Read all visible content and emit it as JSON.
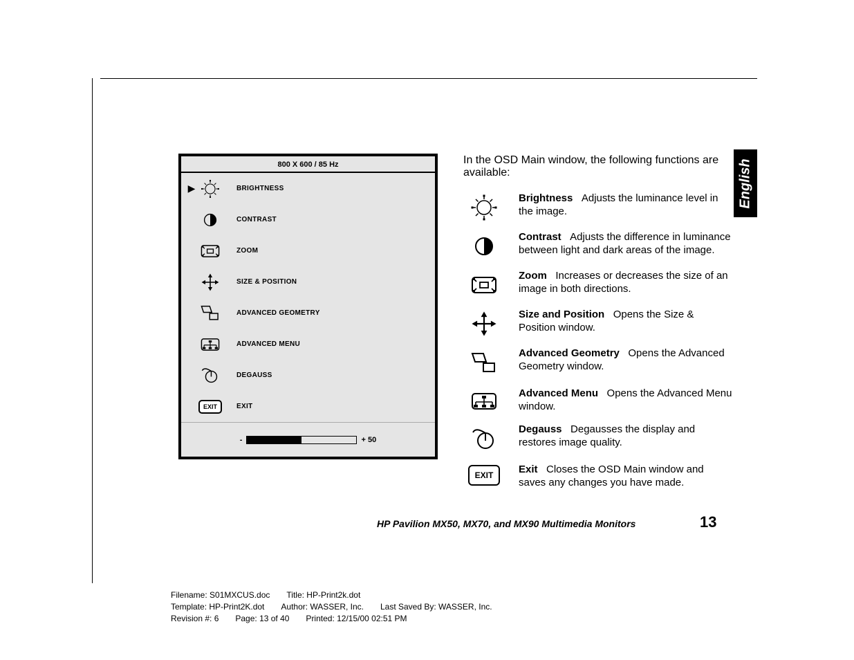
{
  "osd": {
    "header": "800 X 600 / 85 Hz",
    "items": [
      {
        "label": "BRIGHTNESS",
        "selected": true,
        "icon": "brightness"
      },
      {
        "label": "CONTRAST",
        "selected": false,
        "icon": "contrast"
      },
      {
        "label": "ZOOM",
        "selected": false,
        "icon": "zoom"
      },
      {
        "label": "SIZE & POSITION",
        "selected": false,
        "icon": "sizepos"
      },
      {
        "label": "ADVANCED GEOMETRY",
        "selected": false,
        "icon": "geometry"
      },
      {
        "label": "ADVANCED MENU",
        "selected": false,
        "icon": "advmenu"
      },
      {
        "label": "DEGAUSS",
        "selected": false,
        "icon": "degauss"
      },
      {
        "label": "EXIT",
        "selected": false,
        "icon": "exit"
      }
    ],
    "slider": {
      "minus": "-",
      "value_label": "+  50",
      "fill_pct": 50
    }
  },
  "intro": "In the OSD Main window, the following functions are available:",
  "descriptions": [
    {
      "icon": "brightness",
      "title": "Brightness",
      "body": "Adjusts the luminance level in the image."
    },
    {
      "icon": "contrast",
      "title": "Contrast",
      "body": "Adjusts the difference in luminance between light and dark areas of the image."
    },
    {
      "icon": "zoom",
      "title": "Zoom",
      "body": "Increases or decreases the size of an image in both directions."
    },
    {
      "icon": "sizepos",
      "title": "Size and Position",
      "body": "Opens the Size & Position window."
    },
    {
      "icon": "geometry",
      "title": "Advanced Geometry",
      "body": "Opens the Advanced Geometry window."
    },
    {
      "icon": "advmenu",
      "title": "Advanced Menu",
      "body": "Opens the Advanced Menu window."
    },
    {
      "icon": "degauss",
      "title": "Degauss",
      "body": "Degausses the display and restores image quality."
    },
    {
      "icon": "exit",
      "title": "Exit",
      "body": "Closes the OSD Main window and saves any changes you have made."
    }
  ],
  "lang_tab": "English",
  "footer_title": "HP Pavilion MX50, MX70, and MX90 Multimedia Monitors",
  "page_number": "13",
  "meta": {
    "line1": "Filename: S01MXCUS.doc  Title: HP-Print2k.dot",
    "line2": "Template: HP-Print2K.dot  Author: WASSER, Inc.  Last Saved By: WASSER, Inc.",
    "line3": "Revision #: 6  Page: 13 of 40  Printed: 12/15/00 02:51 PM"
  },
  "colors": {
    "panel_bg": "#e5e5e5",
    "line": "#000000",
    "text": "#000000"
  }
}
